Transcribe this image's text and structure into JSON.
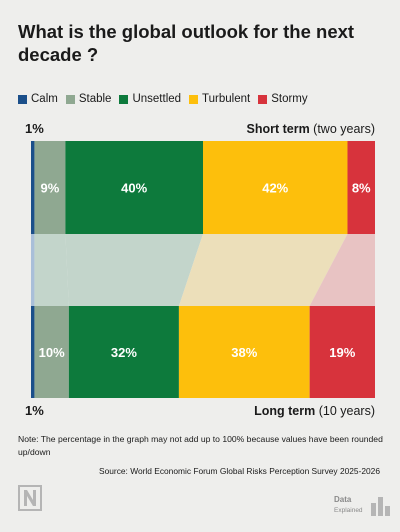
{
  "title": "What is the global outlook for the next decade ?",
  "legend": [
    {
      "name": "Calm",
      "color": "#1b4f8a"
    },
    {
      "name": "Stable",
      "color": "#8fa891"
    },
    {
      "name": "Unsettled",
      "color": "#0d7a3c"
    },
    {
      "name": "Turbulent",
      "color": "#fdbf0c"
    },
    {
      "name": "Stormy",
      "color": "#d7333c"
    }
  ],
  "chart_data": {
    "type": "bar",
    "orientation": "horizontal",
    "stacked": true,
    "categories": [
      "Calm",
      "Stable",
      "Unsettled",
      "Turbulent",
      "Stormy"
    ],
    "rows": [
      {
        "label_main": "Short term",
        "label_sub": "(two years)",
        "values": [
          1,
          9,
          40,
          42,
          8
        ],
        "value_labels": [
          "1%",
          "9%",
          "40%",
          "42%",
          "8%"
        ]
      },
      {
        "label_main": "Long term",
        "label_sub": "(10 years)",
        "values": [
          1,
          10,
          32,
          38,
          19
        ],
        "value_labels": [
          "1%",
          "10%",
          "32%",
          "38%",
          "19%"
        ]
      }
    ],
    "colors": [
      "#1b4f8a",
      "#8fa891",
      "#0d7a3c",
      "#fdbf0c",
      "#d7333c"
    ],
    "band_colors": [
      "#a9bfd9",
      "#c3d5cb",
      "#c3d5cb",
      "#ecdfba",
      "#e8c3c3"
    ]
  },
  "note": "Note: The percentage in the graph may not add up to 100% because values have been rounded up/down",
  "source": "Source: World Economic Forum Global Risks Perception Survey 2025-2026",
  "brand": {
    "logo_text": "Data",
    "logo_subtext": "Explained"
  }
}
